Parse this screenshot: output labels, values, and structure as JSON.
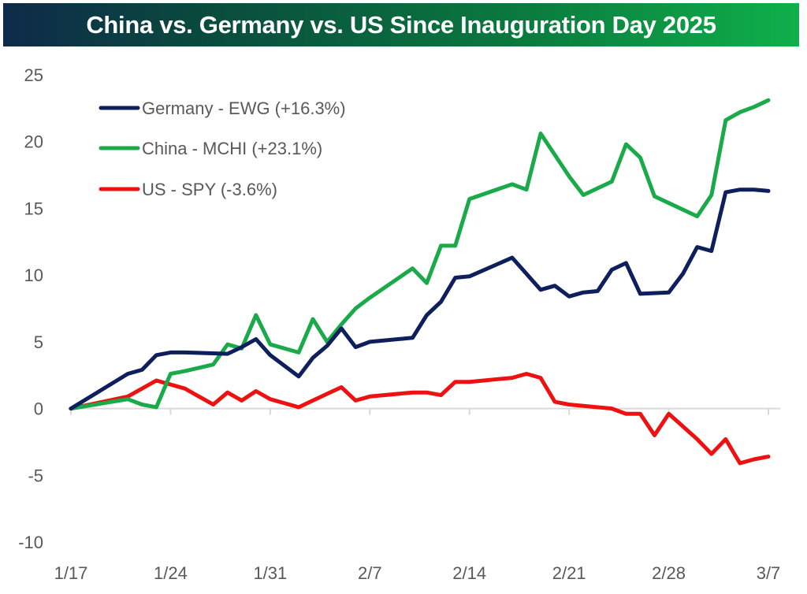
{
  "chart_data": {
    "type": "line",
    "title": "China vs. Germany vs. US Since Inauguration Day 2025",
    "xlabel": "",
    "ylabel": "",
    "ylim": [
      -10,
      25
    ],
    "yticks": [
      25,
      20,
      15,
      10,
      5,
      0,
      -5,
      -10
    ],
    "xticks": [
      "1/17",
      "1/24",
      "1/31",
      "2/7",
      "2/14",
      "2/21",
      "2/28",
      "3/7"
    ],
    "x_domain_days": [
      0,
      49
    ],
    "grid": false,
    "legend_position": "top-left",
    "series": [
      {
        "name": "Germany - EWG (+16.3%)",
        "color": "#0d1f5c",
        "x_days": [
          0,
          4,
          5,
          6,
          7,
          8,
          11,
          12,
          13,
          14,
          16,
          17,
          18,
          19,
          20,
          21,
          24,
          25,
          26,
          27,
          28,
          31,
          33,
          34,
          35,
          36,
          37,
          38,
          39,
          40,
          42,
          43,
          44,
          45,
          46,
          47,
          48,
          49
        ],
        "values": [
          0,
          2.6,
          2.9,
          4.0,
          4.2,
          4.2,
          4.1,
          4.6,
          5.2,
          4.0,
          2.4,
          3.8,
          4.7,
          6.0,
          4.6,
          5.0,
          5.3,
          7.0,
          8.0,
          9.8,
          9.9,
          11.3,
          8.9,
          9.2,
          8.4,
          8.7,
          8.8,
          10.4,
          10.9,
          8.6,
          8.7,
          10.1,
          12.1,
          11.8,
          16.2,
          16.4,
          16.4,
          16.3
        ]
      },
      {
        "name": "China - MCHI (+23.1%)",
        "color": "#1aaa4a",
        "x_days": [
          0,
          4,
          5,
          6,
          7,
          8,
          10,
          11,
          12,
          13,
          14,
          16,
          17,
          18,
          19,
          20,
          21,
          24,
          25,
          26,
          27,
          28,
          31,
          32,
          33,
          35,
          36,
          38,
          39,
          40,
          41,
          42,
          44,
          45,
          46,
          47,
          48,
          49
        ],
        "values": [
          0,
          0.7,
          0.3,
          0.1,
          2.6,
          2.8,
          3.3,
          4.8,
          4.5,
          7.0,
          4.8,
          4.2,
          6.7,
          5.0,
          6.3,
          7.5,
          8.3,
          10.5,
          9.4,
          12.2,
          12.2,
          15.7,
          16.8,
          16.4,
          20.6,
          17.4,
          16.0,
          17.0,
          19.8,
          18.8,
          15.9,
          15.4,
          14.4,
          16.0,
          21.6,
          22.2,
          22.6,
          23.1
        ]
      },
      {
        "name": "US - SPY (-3.6%)",
        "color": "#ee1111",
        "x_days": [
          0,
          4,
          6,
          8,
          10,
          11,
          12,
          13,
          14,
          16,
          17,
          18,
          19,
          20,
          21,
          24,
          25,
          26,
          27,
          28,
          31,
          32,
          33,
          34,
          35,
          38,
          39,
          40,
          41,
          42,
          44,
          45,
          46,
          47,
          48,
          49
        ],
        "values": [
          0,
          0.9,
          2.1,
          1.5,
          0.3,
          1.2,
          0.6,
          1.3,
          0.7,
          0.1,
          0.6,
          1.1,
          1.6,
          0.6,
          0.9,
          1.2,
          1.2,
          1.0,
          2.0,
          2.0,
          2.3,
          2.6,
          2.3,
          0.5,
          0.3,
          0.0,
          -0.4,
          -0.4,
          -2.0,
          -0.4,
          -2.3,
          -3.4,
          -2.3,
          -4.1,
          -3.8,
          -3.6
        ]
      }
    ]
  }
}
